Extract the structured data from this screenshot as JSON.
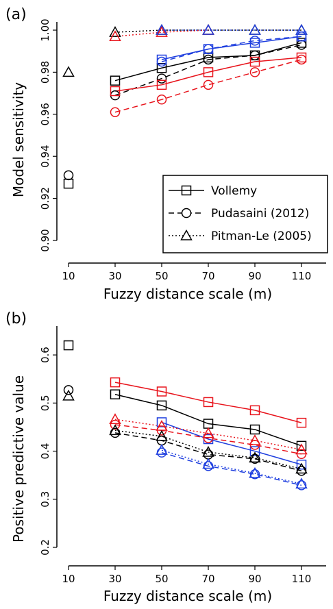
{
  "colors": {
    "black": "#000000",
    "red": "#e8141c",
    "blue": "#1f3fdf"
  },
  "chart_data": [
    {
      "type": "line",
      "panel_label": "(a)",
      "xlabel": "Fuzzy distance scale (m)",
      "ylabel": "Model sensitivity",
      "x_ticks": [
        10,
        30,
        50,
        70,
        90,
        110
      ],
      "y_ticks": [
        0.9,
        0.92,
        0.94,
        0.96,
        0.98,
        1.0
      ],
      "ylim": [
        0.9,
        1.0
      ],
      "legend": {
        "placement": "lower-right",
        "entries": [
          {
            "label": "Vollemy",
            "dash": "solid",
            "marker": "square"
          },
          {
            "label": "Pudasaini (2012)",
            "dash": "dashed",
            "marker": "circle"
          },
          {
            "label": "Pitman-Le (2005)",
            "dash": "dotted",
            "marker": "triangle"
          }
        ]
      },
      "series": [
        {
          "model": "Vollemy",
          "color": "black",
          "x": [
            30,
            50,
            70,
            90,
            110
          ],
          "y": [
            0.976,
            0.982,
            0.987,
            0.988,
            0.994
          ]
        },
        {
          "model": "Pudasaini (2012)",
          "color": "black",
          "x": [
            30,
            50,
            70,
            90,
            110
          ],
          "y": [
            0.969,
            0.977,
            0.986,
            0.988,
            0.993
          ]
        },
        {
          "model": "Pitman-Le (2005)",
          "color": "black",
          "x": [
            30,
            50,
            70,
            90,
            110
          ],
          "y": [
            0.999,
            1.0,
            1.0,
            1.0,
            1.0
          ]
        },
        {
          "model": "Vollemy",
          "color": "red",
          "x": [
            30,
            50,
            70,
            90,
            110
          ],
          "y": [
            0.971,
            0.974,
            0.98,
            0.985,
            0.987
          ]
        },
        {
          "model": "Pudasaini (2012)",
          "color": "red",
          "x": [
            30,
            50,
            70,
            90,
            110
          ],
          "y": [
            0.961,
            0.967,
            0.974,
            0.98,
            0.986
          ]
        },
        {
          "model": "Pitman-Le (2005)",
          "color": "red",
          "x": [
            30,
            50,
            70
          ],
          "y": [
            0.997,
            0.999,
            1.0
          ]
        },
        {
          "model": "Vollemy",
          "color": "blue",
          "x": [
            50,
            70,
            90,
            110
          ],
          "y": [
            0.986,
            0.991,
            0.994,
            0.997
          ]
        },
        {
          "model": "Pudasaini (2012)",
          "color": "blue",
          "x": [
            50,
            70,
            90,
            110
          ],
          "y": [
            0.985,
            0.991,
            0.995,
            0.997
          ]
        },
        {
          "model": "Pitman-Le (2005)",
          "color": "blue",
          "x": [
            50,
            70,
            90,
            110
          ],
          "y": [
            1.0,
            1.0,
            1.0,
            1.0
          ]
        }
      ],
      "standalone_points": [
        {
          "model": "Vollemy",
          "marker": "square",
          "x": 10,
          "y": 0.927
        },
        {
          "model": "Pudasaini (2012)",
          "marker": "circle",
          "x": 10,
          "y": 0.931
        },
        {
          "model": "Pitman-Le (2005)",
          "marker": "triangle",
          "x": 10,
          "y": 0.98
        }
      ]
    },
    {
      "type": "line",
      "panel_label": "(b)",
      "xlabel": "Fuzzy distance scale (m)",
      "ylabel": "Positive predictive value",
      "x_ticks": [
        10,
        30,
        50,
        70,
        90,
        110
      ],
      "y_ticks": [
        0.2,
        0.3,
        0.4,
        0.5,
        0.6
      ],
      "ylim": [
        0.2,
        0.66
      ],
      "series": [
        {
          "model": "Vollemy",
          "color": "red",
          "x": [
            30,
            50,
            70,
            90,
            110
          ],
          "y": [
            0.543,
            0.524,
            0.502,
            0.485,
            0.459
          ]
        },
        {
          "model": "Vollemy",
          "color": "black",
          "x": [
            30,
            50,
            70,
            90,
            110
          ],
          "y": [
            0.518,
            0.495,
            0.457,
            0.445,
            0.411
          ]
        },
        {
          "model": "Vollemy",
          "color": "blue",
          "x": [
            50,
            70,
            90,
            110
          ],
          "y": [
            0.46,
            0.425,
            0.4,
            0.372
          ]
        },
        {
          "model": "Pudasaini (2012)",
          "color": "red",
          "x": [
            30,
            50,
            70,
            90,
            110
          ],
          "y": [
            0.455,
            0.443,
            0.427,
            0.413,
            0.394
          ]
        },
        {
          "model": "Pudasaini (2012)",
          "color": "black",
          "x": [
            30,
            50,
            70,
            90,
            110
          ],
          "y": [
            0.438,
            0.422,
            0.393,
            0.384,
            0.359
          ]
        },
        {
          "model": "Pudasaini (2012)",
          "color": "blue",
          "x": [
            50,
            70,
            90,
            110
          ],
          "y": [
            0.397,
            0.369,
            0.352,
            0.329
          ]
        },
        {
          "model": "Pitman-Le (2005)",
          "color": "red",
          "x": [
            30,
            50,
            70,
            90,
            110
          ],
          "y": [
            0.466,
            0.452,
            0.437,
            0.422,
            0.403
          ]
        },
        {
          "model": "Pitman-Le (2005)",
          "color": "black",
          "x": [
            30,
            50,
            70,
            90,
            110
          ],
          "y": [
            0.443,
            0.431,
            0.398,
            0.386,
            0.363
          ]
        },
        {
          "model": "Pitman-Le (2005)",
          "color": "blue",
          "x": [
            50,
            70,
            90,
            110
          ],
          "y": [
            0.402,
            0.373,
            0.354,
            0.332
          ]
        }
      ],
      "standalone_points": [
        {
          "model": "Vollemy",
          "marker": "square",
          "x": 10,
          "y": 0.62
        },
        {
          "model": "Pudasaini (2012)",
          "marker": "circle",
          "x": 10,
          "y": 0.527
        },
        {
          "model": "Pitman-Le (2005)",
          "marker": "triangle",
          "x": 10,
          "y": 0.515
        }
      ]
    }
  ]
}
